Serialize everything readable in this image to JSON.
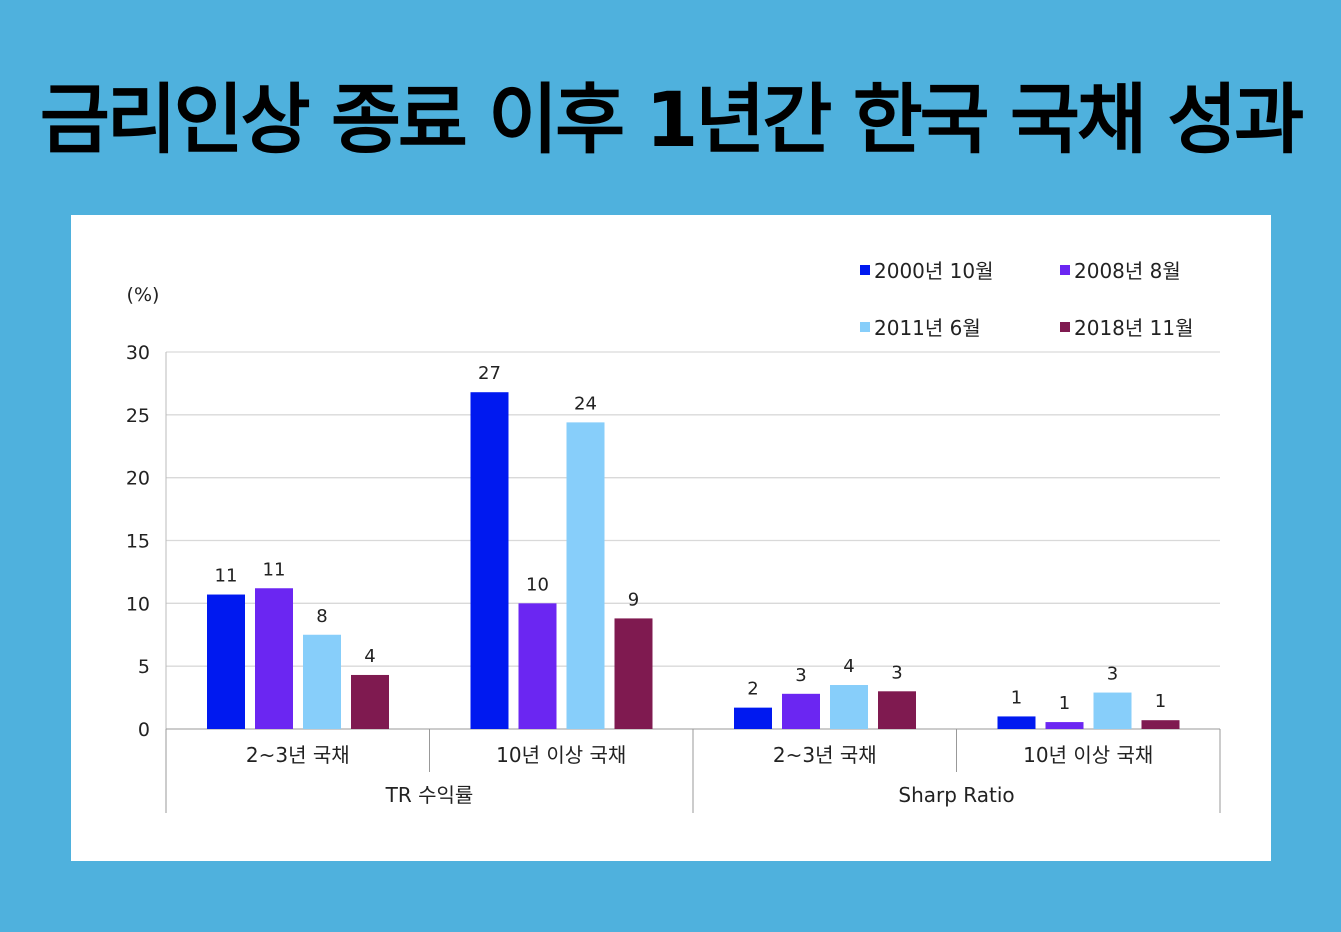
{
  "title": "금리인상 종료 이후 1년간 한국 국채 성과",
  "chart_data": {
    "type": "bar",
    "title": "",
    "unit_label": "(%)",
    "ylim": [
      0,
      30
    ],
    "yticks": [
      0,
      5,
      10,
      15,
      20,
      25,
      30
    ],
    "grid": true,
    "legend_position": "top-right",
    "categories": [
      "2~3년 국채",
      "10년 이상 국채",
      "2~3년 국채",
      "10년 이상 국채"
    ],
    "category_groups": [
      {
        "label": "TR 수익률",
        "span": [
          0,
          1
        ]
      },
      {
        "label": "Sharp Ratio",
        "span": [
          2,
          3
        ]
      }
    ],
    "series": [
      {
        "name": "2000년 10월",
        "color": "#0019F0",
        "values": [
          10.7,
          26.8,
          1.7,
          1.0
        ],
        "labels": [
          "11",
          "27",
          "2",
          "1"
        ]
      },
      {
        "name": "2008년 8월",
        "color": "#6B26F2",
        "values": [
          11.2,
          10.0,
          2.8,
          0.55
        ],
        "labels": [
          "11",
          "10",
          "3",
          "1"
        ]
      },
      {
        "name": "2011년 6월",
        "color": "#87CEFA",
        "values": [
          7.5,
          24.4,
          3.5,
          2.9
        ],
        "labels": [
          "8",
          "24",
          "4",
          "3"
        ]
      },
      {
        "name": "2018년 11월",
        "color": "#7F1A50",
        "values": [
          4.3,
          8.8,
          3.0,
          0.7
        ],
        "labels": [
          "4",
          "9",
          "3",
          "1"
        ]
      }
    ]
  }
}
